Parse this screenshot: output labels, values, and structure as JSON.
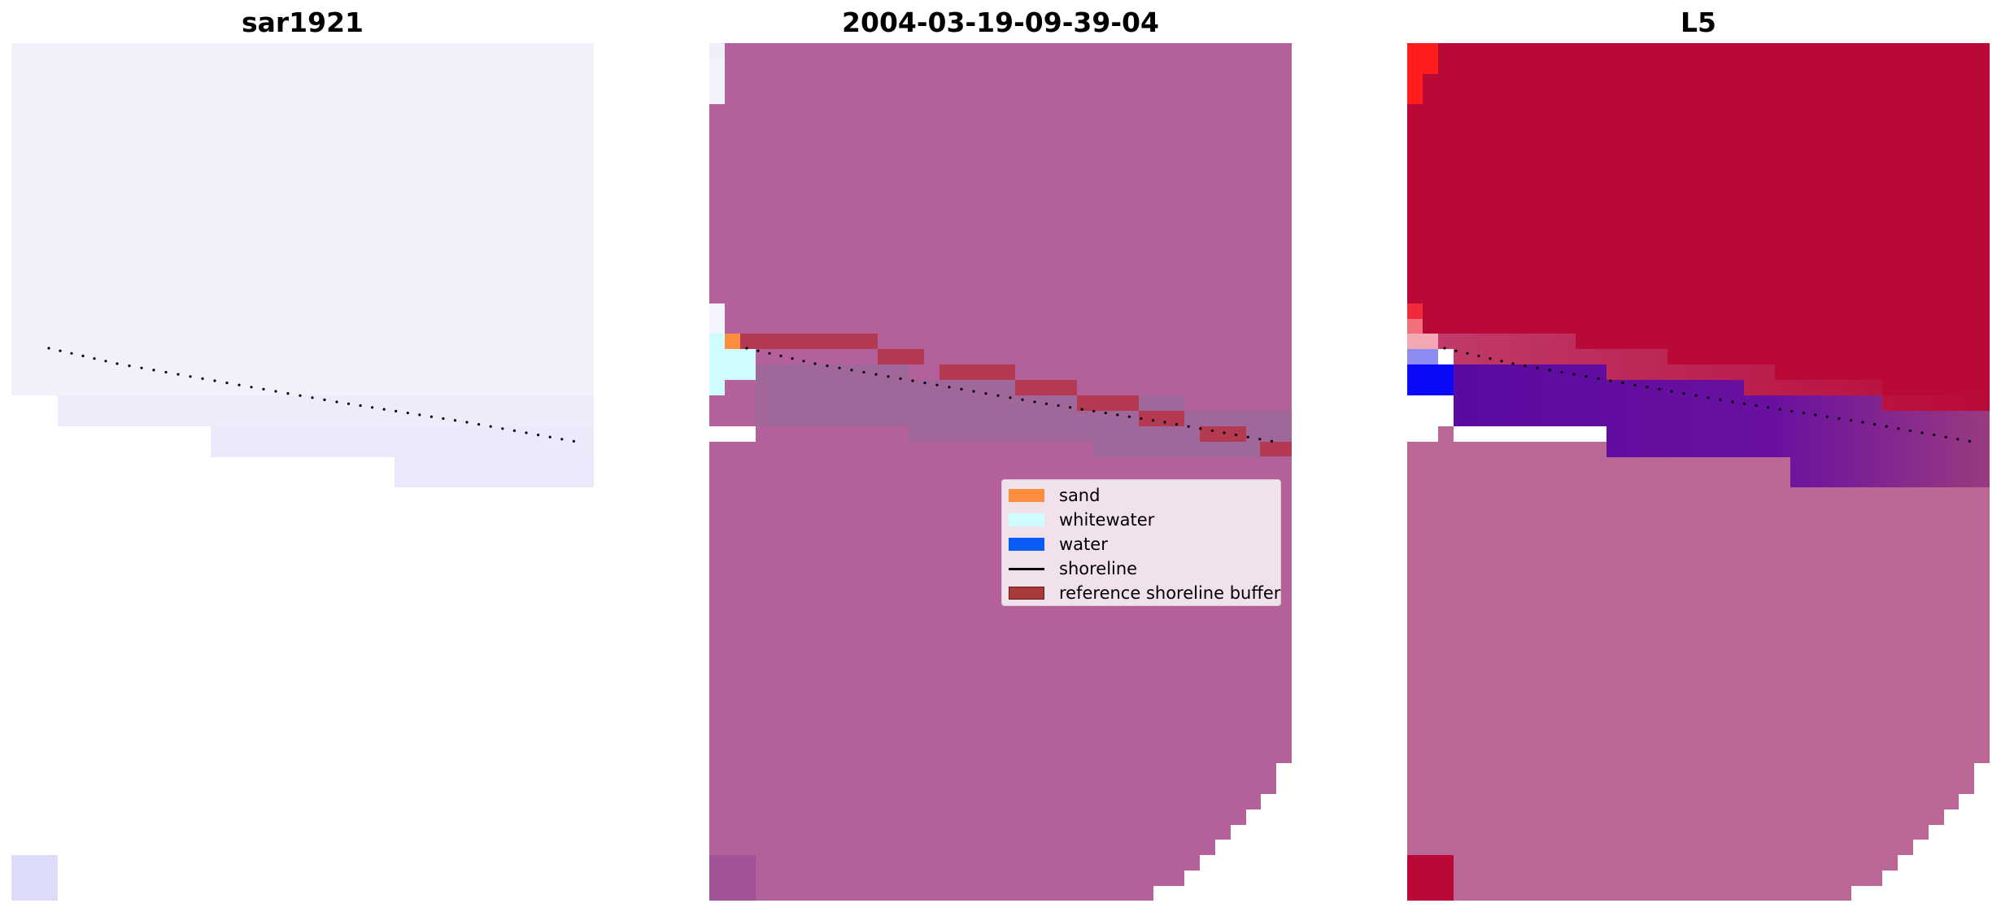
{
  "panels": [
    {
      "title": "sar1921"
    },
    {
      "title": "2004-03-19-09-39-04"
    },
    {
      "title": "L5"
    }
  ],
  "legend": {
    "items": [
      {
        "label": "sand",
        "color": "#fb8f3f",
        "kind": "patch"
      },
      {
        "label": "whitewater",
        "color": "#cffcff",
        "kind": "patch"
      },
      {
        "label": "water",
        "color": "#0a5cf8",
        "kind": "patch"
      },
      {
        "label": "shoreline",
        "color": "#000000",
        "kind": "line"
      },
      {
        "label": "reference shoreline buffer",
        "color": "#a83a3a",
        "kind": "patch"
      }
    ]
  },
  "colors": {
    "satellite_image": "#eeeefb",
    "classified_background": "#b4609a",
    "water_tint": "#a0689a",
    "buffer": "#b43a52",
    "index_positive": "#b90a37",
    "index_negative": "#5a0aa0",
    "outside_mask": "#bb6795"
  }
}
